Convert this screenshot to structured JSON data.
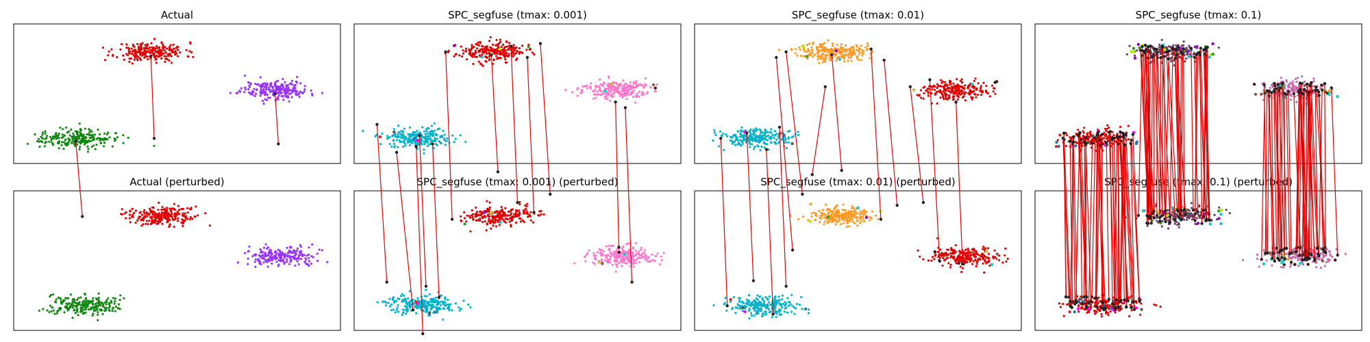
{
  "chart_data": {
    "type": "scatter",
    "xlim": [
      0,
      100
    ],
    "ylim": [
      0,
      100
    ],
    "grid": false,
    "axes_visible": false,
    "link_color": "#e60000",
    "panels": [
      {
        "title": "Actual",
        "seed": 11,
        "clusters": [
          {
            "cx": 42,
            "cy": 80,
            "color": "#e00000",
            "n": 230
          },
          {
            "cx": 80,
            "cy": 53,
            "color": "#9933ff",
            "n": 230
          },
          {
            "cx": 19,
            "cy": 18,
            "color": "#118811",
            "n": 230
          }
        ],
        "links": [
          [
            42,
            77,
            43,
            18
          ],
          [
            80,
            50,
            81,
            14
          ],
          [
            19,
            16,
            21,
            -38
          ]
        ],
        "speckle": 0
      },
      {
        "title": "SPC_segfuse (tmax: 0.001)",
        "seed": 23,
        "clusters": [
          {
            "cx": 42,
            "cy": 80,
            "color": "#e00000",
            "n": 230
          },
          {
            "cx": 80,
            "cy": 53,
            "color": "#ff77cc",
            "n": 230
          },
          {
            "cx": 19,
            "cy": 18,
            "color": "#00b2c9",
            "n": 230
          }
        ],
        "links": [
          [
            28,
            80,
            30,
            -40
          ],
          [
            42,
            78,
            44,
            -6
          ],
          [
            48,
            84,
            50,
            -28
          ],
          [
            53,
            76,
            55,
            -35
          ],
          [
            57,
            86,
            60,
            -22
          ],
          [
            7,
            28,
            10,
            -85
          ],
          [
            13,
            8,
            18,
            -105
          ],
          [
            20,
            20,
            22,
            -88
          ],
          [
            24,
            14,
            26,
            -96
          ],
          [
            83,
            40,
            85,
            -85
          ],
          [
            80,
            44,
            81,
            -60
          ],
          [
            19,
            12,
            21,
            -122
          ]
        ],
        "speckle": 12
      },
      {
        "title": "SPC_segfuse (tmax: 0.01)",
        "seed": 37,
        "clusters": [
          {
            "cx": 42,
            "cy": 80,
            "color": "#ff9922",
            "n": 230
          },
          {
            "cx": 80,
            "cy": 53,
            "color": "#e00000",
            "n": 230
          },
          {
            "cx": 19,
            "cy": 18,
            "color": "#00b2c9",
            "n": 230
          }
        ],
        "links": [
          [
            25,
            76,
            30,
            -62
          ],
          [
            28,
            80,
            33,
            -22
          ],
          [
            42,
            78,
            45,
            -5
          ],
          [
            54,
            82,
            57,
            -40
          ],
          [
            58,
            74,
            62,
            -30
          ],
          [
            66,
            55,
            70,
            -28
          ],
          [
            72,
            60,
            75,
            -70
          ],
          [
            80,
            44,
            82,
            -72
          ],
          [
            16,
            22,
            18,
            -84
          ],
          [
            22,
            10,
            24,
            -108
          ],
          [
            8,
            18,
            10,
            -102
          ],
          [
            26,
            26,
            28,
            -88
          ],
          [
            40,
            55,
            36,
            -8
          ]
        ],
        "speckle": 14
      },
      {
        "title": "SPC_segfuse (tmax: 0.1)",
        "seed": 53,
        "clusters": [
          {
            "cx": 42,
            "cy": 80,
            "color": "#6a3d5a",
            "n": 160
          },
          {
            "cx": 80,
            "cy": 53,
            "color": "#cc66aa",
            "n": 160
          },
          {
            "cx": 19,
            "cy": 18,
            "color": "#e00000",
            "n": 160
          }
        ],
        "links": [],
        "dense_links": 150,
        "speckle": 70
      }
    ],
    "perturbed_panels": [
      {
        "title": "Actual (perturbed)",
        "clusters": [
          {
            "cx": 45,
            "cy": 82,
            "color": "#e00000",
            "n": 230
          },
          {
            "cx": 82,
            "cy": 53,
            "color": "#9933ff",
            "n": 230
          },
          {
            "cx": 21,
            "cy": 18,
            "color": "#118811",
            "n": 230
          }
        ]
      },
      {
        "title": "SPC_segfuse (tmax: 0.001) (perturbed)",
        "clusters": [
          {
            "cx": 45,
            "cy": 82,
            "color": "#e00000",
            "n": 230
          },
          {
            "cx": 82,
            "cy": 53,
            "color": "#ff77cc",
            "n": 230
          },
          {
            "cx": 21,
            "cy": 18,
            "color": "#00b2c9",
            "n": 230
          }
        ]
      },
      {
        "title": "SPC_segfuse (tmax: 0.01) (perturbed)",
        "clusters": [
          {
            "cx": 45,
            "cy": 82,
            "color": "#ff9922",
            "n": 230
          },
          {
            "cx": 82,
            "cy": 53,
            "color": "#e00000",
            "n": 230
          },
          {
            "cx": 21,
            "cy": 18,
            "color": "#00b2c9",
            "n": 230
          }
        ]
      },
      {
        "title": "SPC_segfuse (tmax: 0.1) (perturbed)",
        "clusters": [
          {
            "cx": 45,
            "cy": 82,
            "color": "#6a3d5a",
            "n": 160
          },
          {
            "cx": 82,
            "cy": 53,
            "color": "#cc66aa",
            "n": 160
          },
          {
            "cx": 21,
            "cy": 18,
            "color": "#e00000",
            "n": 160
          }
        ]
      }
    ],
    "speckle_colors": [
      "#b8e600",
      "#3b1c0c",
      "#1f77b4",
      "#9900cc",
      "#00cccc",
      "#ff00ff",
      "#2ca02c",
      "#8c564b",
      "#d62728",
      "#17becf",
      "#bcbd22",
      "#555555"
    ]
  }
}
